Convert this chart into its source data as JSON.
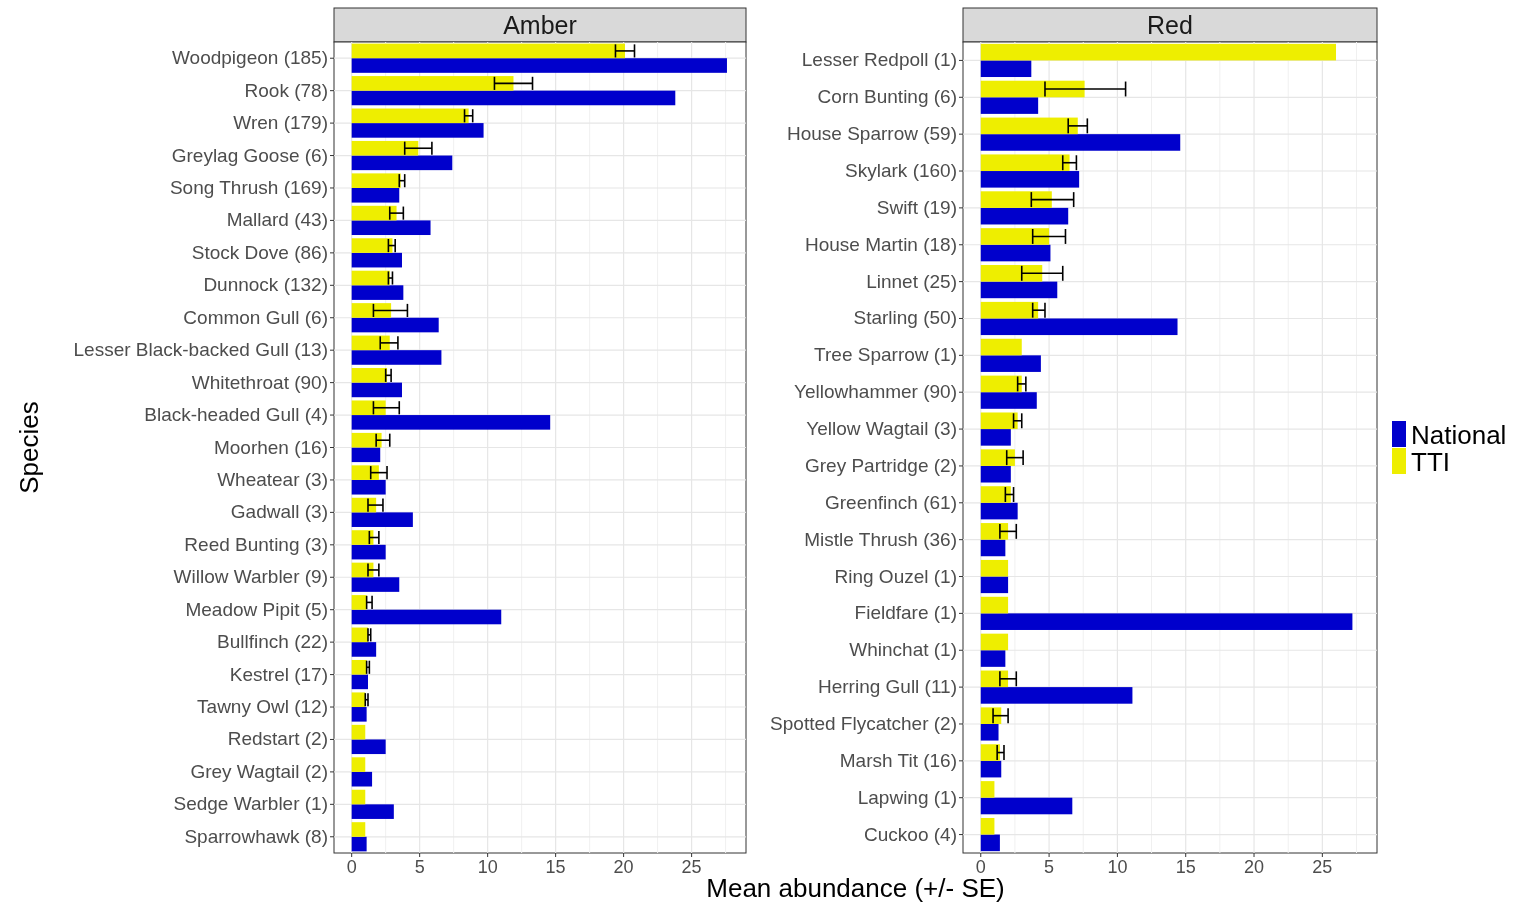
{
  "chart_data": [
    {
      "type": "bar",
      "orientation": "horizontal",
      "title": "Amber",
      "ylabel": "Species",
      "xlabel": "Mean abundance (+/- SE)",
      "grid": true,
      "legend": false,
      "categories": [
        "Woodpigeon (185)",
        "Rook (78)",
        "Wren (179)",
        "Greylag Goose (6)",
        "Song Thrush (169)",
        "Mallard (43)",
        "Stock Dove (86)",
        "Dunnock (132)",
        "Common Gull (6)",
        "Lesser Black-backed Gull (13)",
        "Whitethroat (90)",
        "Black-headed Gull (4)",
        "Moorhen (16)",
        "Wheatear (3)",
        "Gadwall (3)",
        "Reed Bunting (3)",
        "Willow Warbler (9)",
        "Meadow Pipit (5)",
        "Bullfinch (22)",
        "Kestrel (17)",
        "Tawny Owl (12)",
        "Redstart (2)",
        "Grey Wagtail (2)",
        "Sedge Warbler (1)",
        "Sparrowhawk (8)"
      ],
      "xlim": [
        -1.3,
        29.0
      ],
      "xticks": [
        0,
        5,
        10,
        15,
        20,
        25
      ],
      "series": [
        {
          "color": "#0000cc",
          "values": [
            27.6,
            23.8,
            9.7,
            7.4,
            3.5,
            5.8,
            3.7,
            3.8,
            6.4,
            6.6,
            3.7,
            14.6,
            2.1,
            2.5,
            4.5,
            2.5,
            3.5,
            11.0,
            1.8,
            1.2,
            1.1,
            2.5,
            1.5,
            3.1,
            1.1
          ]
        },
        {
          "color": "#eeee00",
          "values": [
            20.1,
            11.9,
            8.6,
            4.9,
            3.6,
            3.3,
            3.0,
            2.8,
            2.9,
            2.8,
            2.6,
            2.5,
            2.2,
            2.0,
            1.8,
            1.6,
            1.6,
            1.1,
            1.2,
            1.1,
            1.0,
            1.0,
            1.0,
            1.0,
            1.0
          ],
          "errors": [
            [
              19.4,
              20.8
            ],
            [
              10.5,
              13.3
            ],
            [
              8.3,
              8.9
            ],
            [
              3.9,
              5.9
            ],
            [
              3.5,
              3.9
            ],
            [
              2.8,
              3.8
            ],
            [
              2.7,
              3.2
            ],
            [
              2.7,
              3.0
            ],
            [
              1.6,
              4.1
            ],
            [
              2.1,
              3.4
            ],
            [
              2.5,
              2.9
            ],
            [
              1.6,
              3.5
            ],
            [
              1.8,
              2.8
            ],
            [
              1.4,
              2.6
            ],
            [
              1.2,
              2.3
            ],
            [
              1.3,
              2.0
            ],
            [
              1.2,
              2.0
            ],
            [
              1.1,
              1.5
            ],
            [
              1.2,
              1.4
            ],
            [
              1.1,
              1.3
            ],
            [
              1.0,
              1.2
            ],
            null,
            null,
            null,
            null
          ]
        }
      ]
    },
    {
      "type": "bar",
      "orientation": "horizontal",
      "title": "Red",
      "grid": true,
      "legend": "right",
      "categories": [
        "Lesser Redpoll (1)",
        "Corn Bunting (6)",
        "House Sparrow (59)",
        "Skylark (160)",
        "Swift (19)",
        "House Martin (18)",
        "Linnet (25)",
        "Starling (50)",
        "Tree Sparrow (1)",
        "Yellowhammer (90)",
        "Yellow Wagtail (3)",
        "Grey Partridge (2)",
        "Greenfinch (61)",
        "Mistle Thrush (36)",
        "Ring Ouzel (1)",
        "Fieldfare (1)",
        "Whinchat (1)",
        "Herring Gull (11)",
        "Spotted Flycatcher (2)",
        "Marsh Tit (16)",
        "Lapwing (1)",
        "Cuckoo (4)"
      ],
      "xlim": [
        -1.3,
        29.0
      ],
      "xticks": [
        0,
        5,
        10,
        15,
        20,
        25
      ],
      "series": [
        {
          "name": "National",
          "color": "#0000cc",
          "values": [
            3.7,
            4.2,
            14.6,
            7.2,
            6.4,
            5.1,
            5.6,
            14.4,
            4.4,
            4.1,
            2.2,
            2.2,
            2.7,
            1.8,
            2.0,
            27.2,
            1.8,
            11.1,
            1.3,
            1.5,
            6.7,
            1.4
          ]
        },
        {
          "name": "TTI",
          "color": "#eeee00",
          "values": [
            26.0,
            7.6,
            7.1,
            6.5,
            5.2,
            5.0,
            4.5,
            4.2,
            3.0,
            3.0,
            2.7,
            2.5,
            2.2,
            2.0,
            2.0,
            2.0,
            2.0,
            2.0,
            1.5,
            1.4,
            1.0,
            1.0
          ],
          "errors": [
            null,
            [
              4.7,
              10.6
            ],
            [
              6.4,
              7.8
            ],
            [
              6.0,
              7.0
            ],
            [
              3.7,
              6.8
            ],
            [
              3.8,
              6.2
            ],
            [
              3.0,
              6.0
            ],
            [
              3.8,
              4.7
            ],
            null,
            [
              2.7,
              3.3
            ],
            [
              2.4,
              3.0
            ],
            [
              1.9,
              3.1
            ],
            [
              1.8,
              2.4
            ],
            [
              1.4,
              2.6
            ],
            null,
            null,
            null,
            [
              1.4,
              2.6
            ],
            [
              0.9,
              2.0
            ],
            [
              1.2,
              1.7
            ],
            null,
            null
          ]
        }
      ]
    }
  ]
}
